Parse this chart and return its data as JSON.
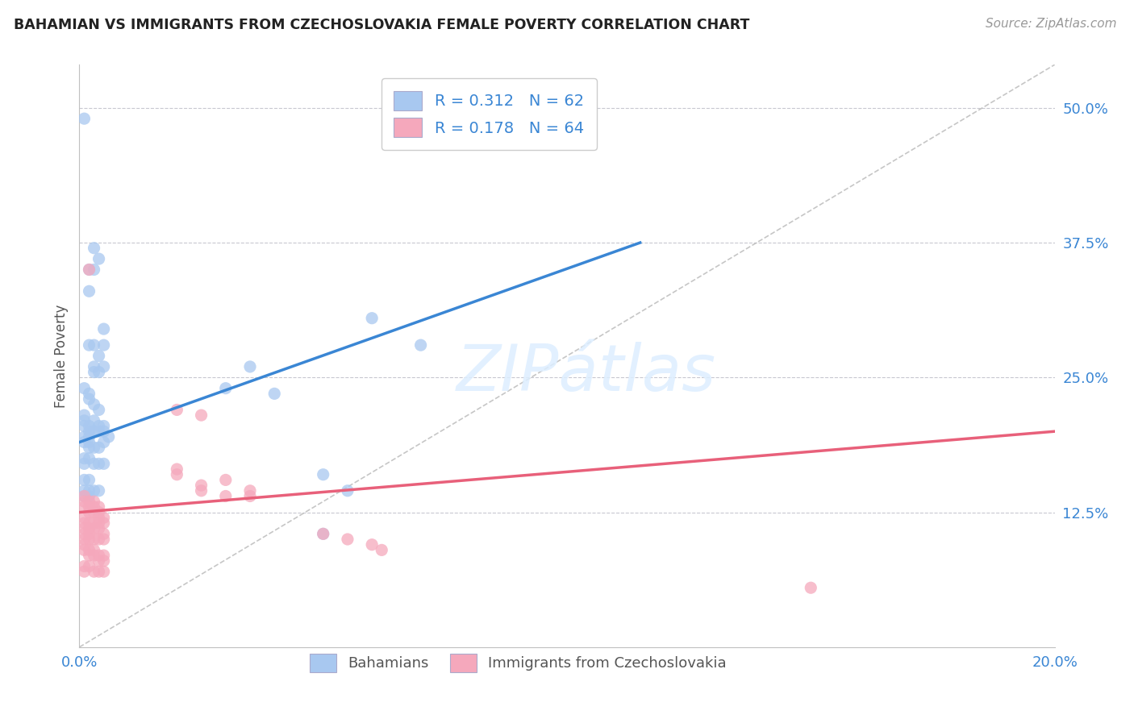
{
  "title": "BAHAMIAN VS IMMIGRANTS FROM CZECHOSLOVAKIA FEMALE POVERTY CORRELATION CHART",
  "source": "Source: ZipAtlas.com",
  "ylabel": "Female Poverty",
  "ytick_labels": [
    "12.5%",
    "25.0%",
    "37.5%",
    "50.0%"
  ],
  "ytick_values": [
    0.125,
    0.25,
    0.375,
    0.5
  ],
  "xlim": [
    0.0,
    0.2
  ],
  "ylim": [
    0.0,
    0.54
  ],
  "legend_labels": [
    "Bahamians",
    "Immigrants from Czechoslovakia"
  ],
  "blue_color": "#3a86d4",
  "pink_color": "#e8607a",
  "blue_scatter_color": "#a8c8f0",
  "pink_scatter_color": "#f5a8bc",
  "watermark": "ZIPatlas",
  "blue_line": {
    "x0": 0.0,
    "y0": 0.19,
    "x1": 0.115,
    "y1": 0.375
  },
  "pink_line": {
    "x0": 0.0,
    "y0": 0.125,
    "x1": 0.2,
    "y1": 0.2
  },
  "dash_line": {
    "x0": 0.0,
    "y0": 0.0,
    "x1": 0.2,
    "y1": 0.54
  },
  "blue_points": [
    [
      0.001,
      0.49
    ],
    [
      0.002,
      0.35
    ],
    [
      0.002,
      0.33
    ],
    [
      0.003,
      0.37
    ],
    [
      0.003,
      0.35
    ],
    [
      0.004,
      0.36
    ],
    [
      0.002,
      0.28
    ],
    [
      0.003,
      0.28
    ],
    [
      0.004,
      0.27
    ],
    [
      0.005,
      0.295
    ],
    [
      0.005,
      0.28
    ],
    [
      0.003,
      0.26
    ],
    [
      0.003,
      0.255
    ],
    [
      0.004,
      0.255
    ],
    [
      0.005,
      0.26
    ],
    [
      0.001,
      0.24
    ],
    [
      0.002,
      0.235
    ],
    [
      0.002,
      0.23
    ],
    [
      0.003,
      0.225
    ],
    [
      0.004,
      0.22
    ],
    [
      0.001,
      0.215
    ],
    [
      0.001,
      0.21
    ],
    [
      0.001,
      0.205
    ],
    [
      0.002,
      0.205
    ],
    [
      0.002,
      0.2
    ],
    [
      0.002,
      0.195
    ],
    [
      0.003,
      0.21
    ],
    [
      0.003,
      0.2
    ],
    [
      0.004,
      0.205
    ],
    [
      0.004,
      0.2
    ],
    [
      0.005,
      0.205
    ],
    [
      0.005,
      0.2
    ],
    [
      0.001,
      0.195
    ],
    [
      0.001,
      0.19
    ],
    [
      0.002,
      0.19
    ],
    [
      0.002,
      0.185
    ],
    [
      0.003,
      0.185
    ],
    [
      0.004,
      0.185
    ],
    [
      0.005,
      0.19
    ],
    [
      0.006,
      0.195
    ],
    [
      0.001,
      0.175
    ],
    [
      0.001,
      0.17
    ],
    [
      0.002,
      0.175
    ],
    [
      0.003,
      0.17
    ],
    [
      0.004,
      0.17
    ],
    [
      0.005,
      0.17
    ],
    [
      0.001,
      0.155
    ],
    [
      0.002,
      0.155
    ],
    [
      0.001,
      0.145
    ],
    [
      0.001,
      0.14
    ],
    [
      0.002,
      0.145
    ],
    [
      0.002,
      0.14
    ],
    [
      0.003,
      0.145
    ],
    [
      0.004,
      0.145
    ],
    [
      0.06,
      0.305
    ],
    [
      0.07,
      0.28
    ],
    [
      0.03,
      0.24
    ],
    [
      0.035,
      0.26
    ],
    [
      0.04,
      0.235
    ],
    [
      0.05,
      0.16
    ],
    [
      0.055,
      0.145
    ],
    [
      0.05,
      0.105
    ]
  ],
  "pink_points": [
    [
      0.001,
      0.14
    ],
    [
      0.001,
      0.135
    ],
    [
      0.001,
      0.13
    ],
    [
      0.002,
      0.135
    ],
    [
      0.002,
      0.13
    ],
    [
      0.002,
      0.125
    ],
    [
      0.003,
      0.135
    ],
    [
      0.003,
      0.13
    ],
    [
      0.003,
      0.125
    ],
    [
      0.004,
      0.13
    ],
    [
      0.004,
      0.125
    ],
    [
      0.004,
      0.12
    ],
    [
      0.001,
      0.12
    ],
    [
      0.001,
      0.115
    ],
    [
      0.001,
      0.11
    ],
    [
      0.002,
      0.115
    ],
    [
      0.002,
      0.11
    ],
    [
      0.003,
      0.115
    ],
    [
      0.003,
      0.11
    ],
    [
      0.004,
      0.115
    ],
    [
      0.004,
      0.11
    ],
    [
      0.005,
      0.12
    ],
    [
      0.005,
      0.115
    ],
    [
      0.001,
      0.105
    ],
    [
      0.001,
      0.1
    ],
    [
      0.002,
      0.105
    ],
    [
      0.002,
      0.1
    ],
    [
      0.003,
      0.1
    ],
    [
      0.004,
      0.1
    ],
    [
      0.005,
      0.105
    ],
    [
      0.005,
      0.1
    ],
    [
      0.001,
      0.095
    ],
    [
      0.001,
      0.09
    ],
    [
      0.002,
      0.09
    ],
    [
      0.002,
      0.085
    ],
    [
      0.003,
      0.09
    ],
    [
      0.003,
      0.085
    ],
    [
      0.004,
      0.085
    ],
    [
      0.004,
      0.08
    ],
    [
      0.005,
      0.085
    ],
    [
      0.005,
      0.08
    ],
    [
      0.001,
      0.075
    ],
    [
      0.001,
      0.07
    ],
    [
      0.002,
      0.075
    ],
    [
      0.003,
      0.07
    ],
    [
      0.004,
      0.07
    ],
    [
      0.005,
      0.07
    ],
    [
      0.002,
      0.35
    ],
    [
      0.02,
      0.165
    ],
    [
      0.02,
      0.16
    ],
    [
      0.025,
      0.15
    ],
    [
      0.025,
      0.145
    ],
    [
      0.03,
      0.155
    ],
    [
      0.03,
      0.14
    ],
    [
      0.035,
      0.145
    ],
    [
      0.035,
      0.14
    ],
    [
      0.02,
      0.22
    ],
    [
      0.025,
      0.215
    ],
    [
      0.05,
      0.105
    ],
    [
      0.055,
      0.1
    ],
    [
      0.06,
      0.095
    ],
    [
      0.062,
      0.09
    ],
    [
      0.15,
      0.055
    ]
  ]
}
